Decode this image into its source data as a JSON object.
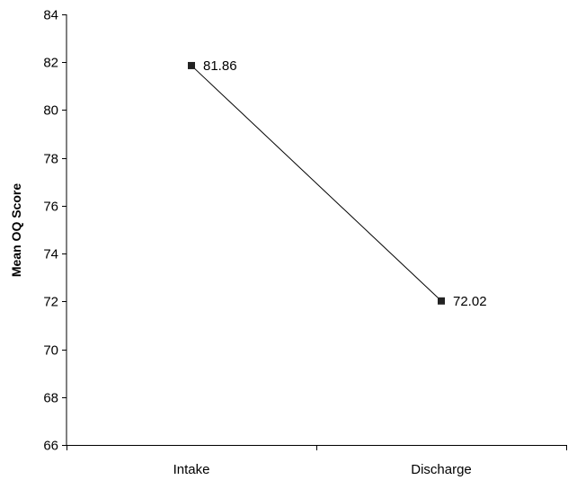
{
  "chart_data": {
    "type": "line",
    "title": "",
    "xlabel": "",
    "ylabel": "Mean OQ Score",
    "categories": [
      "Intake",
      "Discharge"
    ],
    "series": [
      {
        "values": [
          81.86,
          72.02
        ],
        "data_labels": [
          "81.86",
          "72.02"
        ],
        "color": "#000000",
        "marker": "square"
      }
    ],
    "ylim": [
      66,
      84
    ],
    "yticks": [
      66,
      68,
      70,
      72,
      74,
      76,
      78,
      80,
      82,
      84
    ],
    "ytick_labels": [
      "66",
      "68",
      "70",
      "72",
      "74",
      "76",
      "78",
      "80",
      "82",
      "84"
    ],
    "grid": false,
    "legend": "none"
  }
}
